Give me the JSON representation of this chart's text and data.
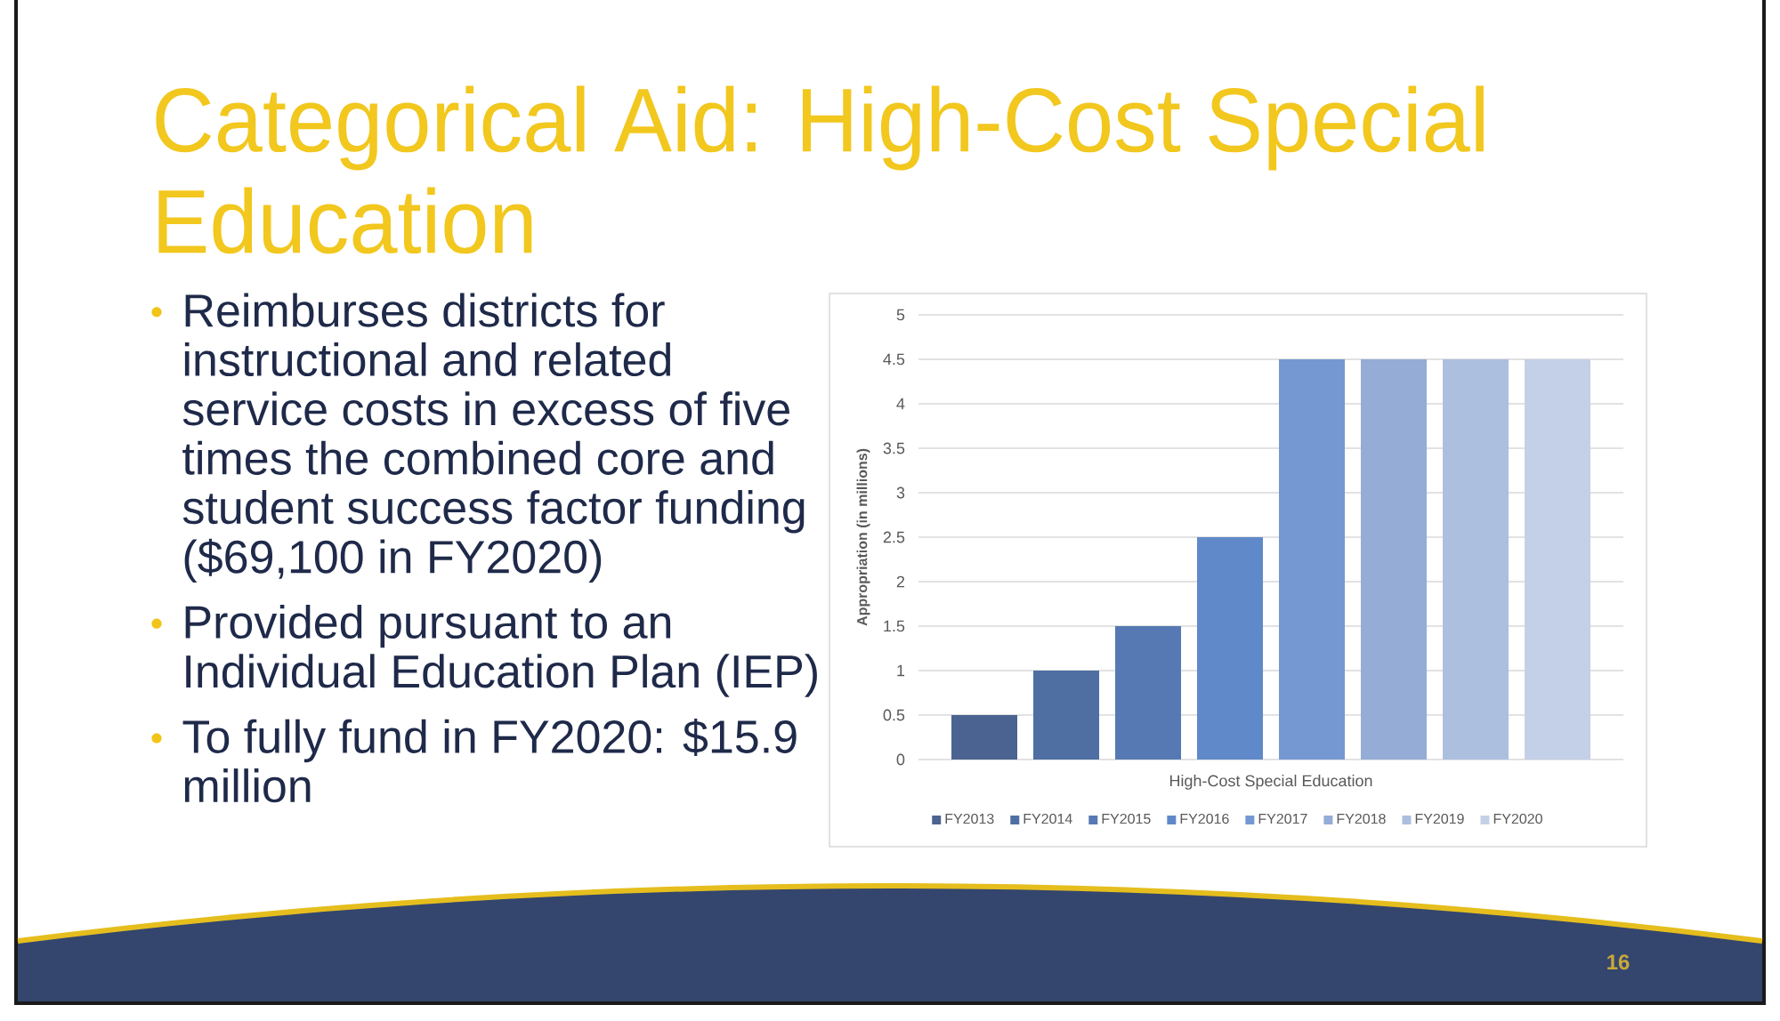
{
  "chart_data": {
    "type": "bar",
    "title": "Categorical Aid:  High-Cost Special Education",
    "ylabel": "Appropriation (in millions)",
    "categories": [
      "High-Cost Special Education"
    ],
    "series": [
      {
        "name": "FY2013",
        "color": "#4a6390",
        "values": [
          0.5
        ]
      },
      {
        "name": "FY2014",
        "color": "#4f6fa3",
        "values": [
          1
        ]
      },
      {
        "name": "FY2015",
        "color": "#5679b3",
        "values": [
          1.5
        ]
      },
      {
        "name": "FY2016",
        "color": "#5f89c9",
        "values": [
          2.5
        ]
      },
      {
        "name": "FY2017",
        "color": "#7598d2",
        "values": [
          4.5
        ]
      },
      {
        "name": "FY2018",
        "color": "#94acd6",
        "values": [
          4.5
        ]
      },
      {
        "name": "FY2019",
        "color": "#adbfdf",
        "values": [
          4.5
        ]
      },
      {
        "name": "FY2020",
        "color": "#c4d0e7",
        "values": [
          4.5
        ]
      }
    ],
    "ylim": [
      0,
      5
    ],
    "yticks": [
      0,
      0.5,
      1,
      1.5,
      2,
      2.5,
      3,
      3.5,
      4,
      4.5,
      5
    ],
    "grid": "y",
    "legend": "bottom",
    "annotations": [
      "Reimburses districts for instructional and related service costs in excess of five times the combined core and student success factor funding ($69,100 in FY2020)",
      "Provided pursuant to an Individual Education Plan (IEP)",
      "To fully fund in FY2020:  $15.9 million",
      "16"
    ]
  }
}
